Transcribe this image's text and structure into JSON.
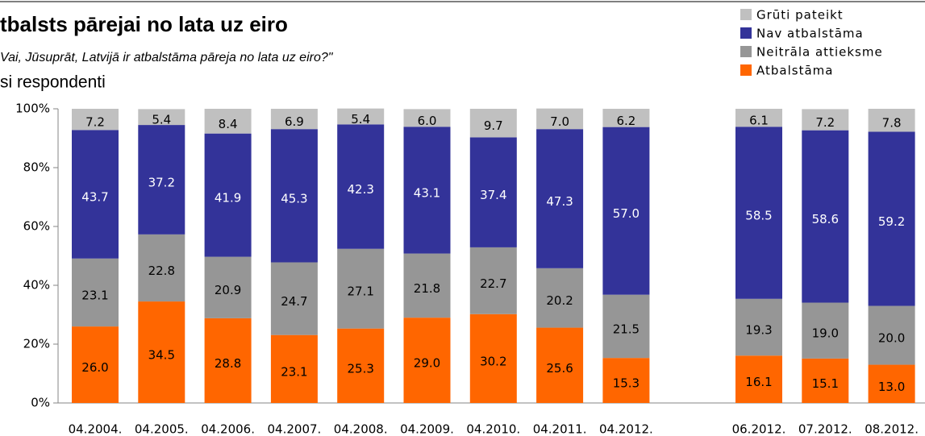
{
  "chart_data": {
    "type": "stacked_bar",
    "title": "tbalsts pārejai no lata uz eiro",
    "subtitle": "Vai, Jūsuprāt, Latvijā ir atbalstāma pāreja no lata uz eiro?\"",
    "note": "si respondenti",
    "categories": [
      "04.2004.",
      "04.2005.",
      "04.2006.",
      "04.2007.",
      "04.2008.",
      "04.2009.",
      "04.2010.",
      "04.2011.",
      "04.2012.",
      null,
      "06.2012.",
      "07.2012.",
      "08.2012."
    ],
    "series": [
      {
        "name": "Atbalstāma",
        "color": "#ff6600",
        "values": [
          26.0,
          34.5,
          28.8,
          23.1,
          25.3,
          29.0,
          30.2,
          25.6,
          15.3,
          null,
          16.1,
          15.1,
          13.0
        ],
        "value_labels": [
          "26.0",
          "34.5",
          "28.8",
          "23.1",
          "25.3",
          "29.0",
          "30.2",
          "25.6",
          "15.3",
          null,
          "16.1",
          "15.1",
          "13.0"
        ]
      },
      {
        "name": "Neitrāla attieksme",
        "color": "#969696",
        "values": [
          23.1,
          22.8,
          20.9,
          24.7,
          27.1,
          21.8,
          22.7,
          20.2,
          21.5,
          null,
          19.3,
          19.0,
          20.0
        ],
        "value_labels": [
          "23.1",
          "22.8",
          "20.9",
          "24.7",
          "27.1",
          "21.8",
          "22.7",
          "20.2",
          "21.5",
          null,
          "19.3",
          "19.0",
          "20.0"
        ]
      },
      {
        "name": "Nav atbalstāma",
        "color": "#333399",
        "values": [
          43.7,
          37.2,
          41.9,
          45.3,
          42.3,
          43.1,
          37.4,
          47.3,
          57.0,
          null,
          58.5,
          58.6,
          59.2
        ],
        "value_labels": [
          "43.7",
          "37.2",
          "41.9",
          "45.3",
          "42.3",
          "43.1",
          "37.4",
          "47.3",
          "57.0",
          null,
          "58.5",
          "58.6",
          "59.2"
        ]
      },
      {
        "name": "Grūti pateikt",
        "color": "#c0c0c0",
        "values": [
          7.2,
          5.4,
          8.4,
          6.9,
          5.4,
          6.0,
          9.7,
          7.0,
          6.2,
          null,
          6.1,
          7.2,
          7.8
        ],
        "value_labels": [
          "7.2",
          "5.4",
          "8.4",
          "6.9",
          "5.4",
          "6.0",
          "9.7",
          "7.0",
          "6.2",
          null,
          "6.1",
          "7.2",
          "7.8"
        ]
      }
    ],
    "ylim": [
      0,
      100
    ],
    "yticks": [
      {
        "value": 0,
        "label": "0%"
      },
      {
        "value": 20,
        "label": "20%"
      },
      {
        "value": 40,
        "label": "40%"
      },
      {
        "value": 60,
        "label": "60%"
      },
      {
        "value": 80,
        "label": "80%"
      },
      {
        "value": 100,
        "label": "100%"
      }
    ],
    "legend": "top-right"
  }
}
